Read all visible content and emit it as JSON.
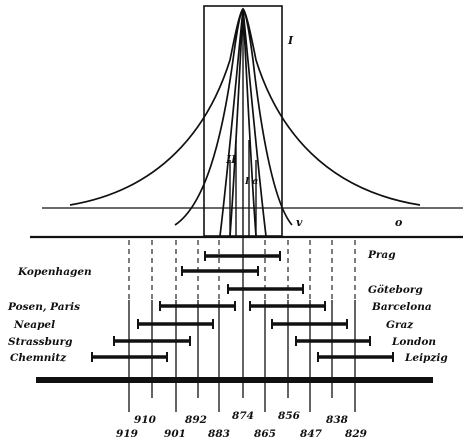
{
  "labels": {
    "curve_I": "I",
    "curve_II": "II",
    "curve_III": "I a",
    "curve_v": "v",
    "curve_o": "o"
  },
  "cities_left": [
    "Kopenhagen",
    "Posen, Paris",
    "Neapel",
    "Strassburg",
    "Chemnitz"
  ],
  "cities_right": [
    "Prag",
    "Göteborg",
    "Barcelona",
    "Graz",
    "London",
    "Leipzig"
  ],
  "scale_numbers": {
    "top_row": [
      "910",
      "892",
      "874",
      "856",
      "838"
    ],
    "bottom_row": [
      "919",
      "901",
      "883",
      "865",
      "847",
      "829"
    ]
  }
}
